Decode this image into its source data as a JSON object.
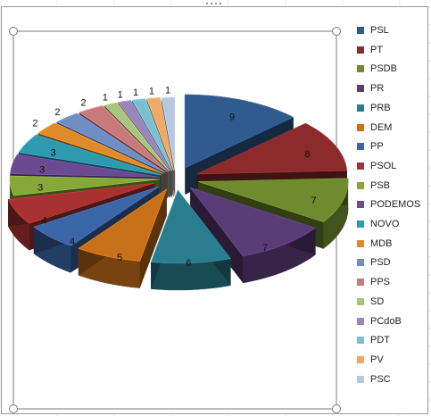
{
  "chart_data": {
    "type": "pie",
    "variant": "3d-exploded",
    "categories": [
      "PSL",
      "PT",
      "PSDB",
      "PR",
      "PRB",
      "DEM",
      "PP",
      "PSOL",
      "PSB",
      "PODEMOS",
      "NOVO",
      "MDB",
      "PSD",
      "PPS",
      "SD",
      "PCdoB",
      "PDT",
      "PV",
      "PSC"
    ],
    "values": [
      9,
      8,
      7,
      7,
      6,
      5,
      4,
      4,
      3,
      3,
      3,
      2,
      2,
      2,
      1,
      1,
      1,
      1,
      1
    ],
    "data_labels": [
      "9",
      "8",
      "7",
      "7",
      "6",
      "5",
      "4",
      "4",
      "3",
      "3",
      "3",
      "2",
      "2",
      "2",
      "1",
      "1",
      "1",
      "1",
      "1"
    ],
    "colors": [
      "#2f5b8e",
      "#8b2b2b",
      "#6e8b2e",
      "#5a3d78",
      "#2a7d8e",
      "#c8701a",
      "#3b67a8",
      "#a83232",
      "#86a83a",
      "#6b4a91",
      "#2e9ab0",
      "#e08a2e",
      "#6f8fc4",
      "#c97b7b",
      "#a9c47e",
      "#9a86b8",
      "#7cbfd0",
      "#f0a96a",
      "#b7c7e0"
    ],
    "legend_position": "right",
    "title": ""
  }
}
